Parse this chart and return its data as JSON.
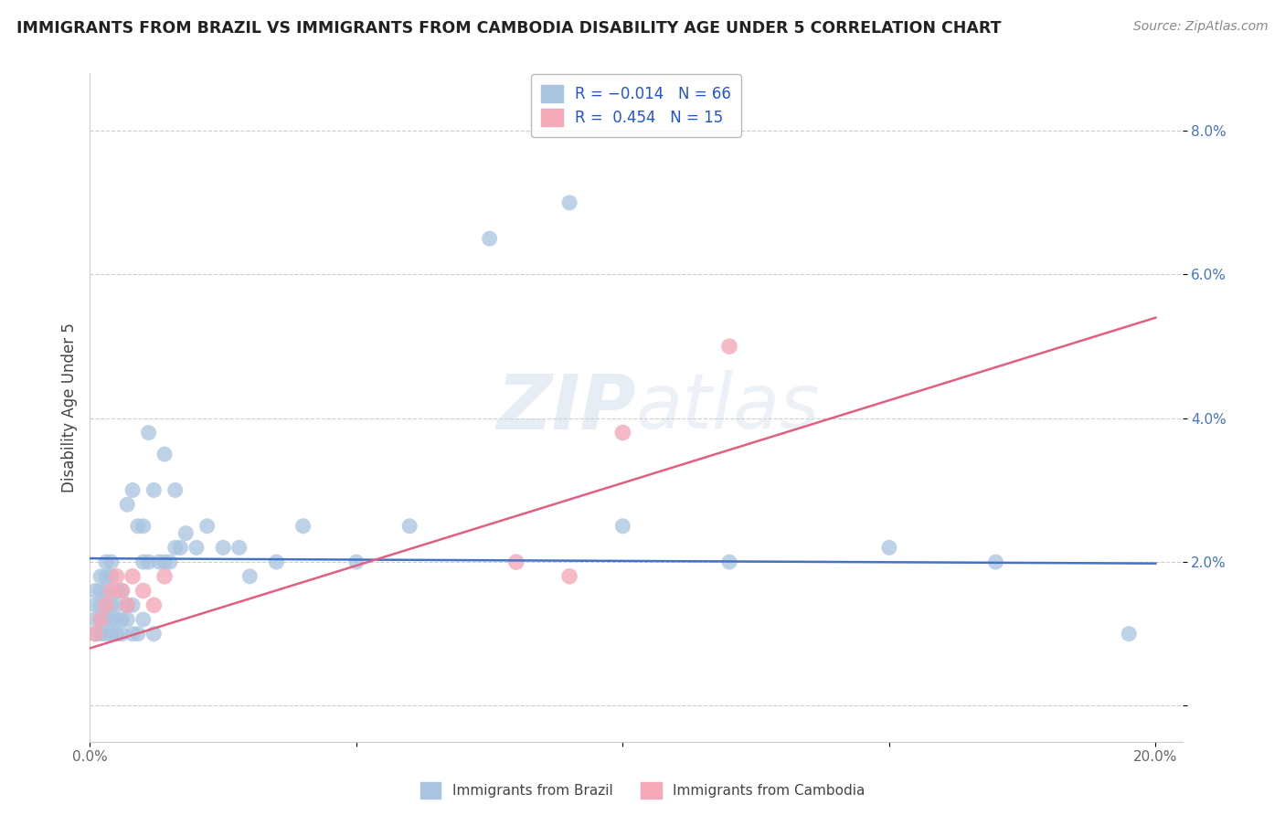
{
  "title": "IMMIGRANTS FROM BRAZIL VS IMMIGRANTS FROM CAMBODIA DISABILITY AGE UNDER 5 CORRELATION CHART",
  "source": "Source: ZipAtlas.com",
  "ylabel": "Disability Age Under 5",
  "xlim": [
    0.0,
    0.205
  ],
  "ylim": [
    -0.005,
    0.088
  ],
  "xticks": [
    0.0,
    0.05,
    0.1,
    0.15,
    0.2
  ],
  "xticklabels": [
    "0.0%",
    "",
    "",
    "",
    "20.0%"
  ],
  "yticks": [
    0.0,
    0.02,
    0.04,
    0.06,
    0.08
  ],
  "yticklabels": [
    "",
    "2.0%",
    "4.0%",
    "6.0%",
    "8.0%"
  ],
  "brazil_R": -0.014,
  "brazil_N": 66,
  "cambodia_R": 0.454,
  "cambodia_N": 15,
  "brazil_color": "#a8c4e0",
  "cambodia_color": "#f4a8b8",
  "brazil_line_color": "#4472c4",
  "cambodia_line_color": "#e06080",
  "r_value_color": "#2255cc",
  "n_value_color": "#2255cc",
  "brazil_x": [
    0.001,
    0.001,
    0.001,
    0.001,
    0.002,
    0.002,
    0.002,
    0.002,
    0.002,
    0.003,
    0.003,
    0.003,
    0.003,
    0.003,
    0.003,
    0.004,
    0.004,
    0.004,
    0.004,
    0.004,
    0.005,
    0.005,
    0.005,
    0.005,
    0.006,
    0.006,
    0.006,
    0.007,
    0.007,
    0.007,
    0.008,
    0.008,
    0.008,
    0.009,
    0.009,
    0.01,
    0.01,
    0.01,
    0.011,
    0.011,
    0.012,
    0.012,
    0.013,
    0.014,
    0.014,
    0.015,
    0.016,
    0.016,
    0.017,
    0.018,
    0.02,
    0.022,
    0.025,
    0.028,
    0.03,
    0.035,
    0.04,
    0.05,
    0.06,
    0.075,
    0.09,
    0.1,
    0.12,
    0.15,
    0.17,
    0.195
  ],
  "brazil_y": [
    0.01,
    0.012,
    0.014,
    0.016,
    0.01,
    0.012,
    0.014,
    0.016,
    0.018,
    0.01,
    0.012,
    0.014,
    0.016,
    0.018,
    0.02,
    0.01,
    0.012,
    0.014,
    0.018,
    0.02,
    0.01,
    0.012,
    0.014,
    0.016,
    0.01,
    0.012,
    0.016,
    0.012,
    0.014,
    0.028,
    0.01,
    0.014,
    0.03,
    0.01,
    0.025,
    0.012,
    0.02,
    0.025,
    0.02,
    0.038,
    0.01,
    0.03,
    0.02,
    0.02,
    0.035,
    0.02,
    0.022,
    0.03,
    0.022,
    0.024,
    0.022,
    0.025,
    0.022,
    0.022,
    0.018,
    0.02,
    0.025,
    0.02,
    0.025,
    0.065,
    0.07,
    0.025,
    0.02,
    0.022,
    0.02,
    0.01
  ],
  "cambodia_x": [
    0.001,
    0.002,
    0.003,
    0.004,
    0.005,
    0.006,
    0.007,
    0.008,
    0.01,
    0.012,
    0.014,
    0.08,
    0.09,
    0.1,
    0.12
  ],
  "cambodia_y": [
    0.01,
    0.012,
    0.014,
    0.016,
    0.018,
    0.016,
    0.014,
    0.018,
    0.016,
    0.014,
    0.018,
    0.02,
    0.018,
    0.038,
    0.05
  ],
  "brazil_line_x": [
    0.0,
    0.2
  ],
  "brazil_line_y": [
    0.0205,
    0.0198
  ],
  "cambodia_line_x": [
    0.0,
    0.2
  ],
  "cambodia_line_y": [
    0.008,
    0.054
  ]
}
